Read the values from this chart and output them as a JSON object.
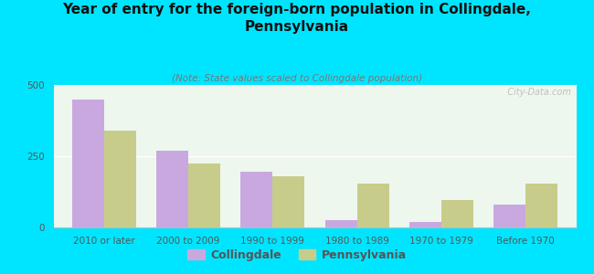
{
  "title": "Year of entry for the foreign-born population in Collingdale,\nPennsylvania",
  "subtitle": "(Note: State values scaled to Collingdale population)",
  "categories": [
    "2010 or later",
    "2000 to 2009",
    "1990 to 1999",
    "1980 to 1989",
    "1970 to 1979",
    "Before 1970"
  ],
  "collingdale": [
    450,
    270,
    195,
    25,
    20,
    80
  ],
  "pennsylvania": [
    340,
    225,
    180,
    155,
    95,
    155
  ],
  "collingdale_color": "#c9a8e0",
  "pennsylvania_color": "#c8cc8a",
  "bar_width": 0.38,
  "ylim": [
    0,
    500
  ],
  "yticks": [
    0,
    250,
    500
  ],
  "background_color": "#00e5ff",
  "plot_bg_color": "#eef7ee",
  "watermark": "  City-Data.com",
  "legend_collingdale": "Collingdale",
  "legend_pennsylvania": "Pennsylvania",
  "title_fontsize": 11,
  "subtitle_fontsize": 7.5,
  "tick_fontsize": 7.5,
  "legend_fontsize": 9
}
